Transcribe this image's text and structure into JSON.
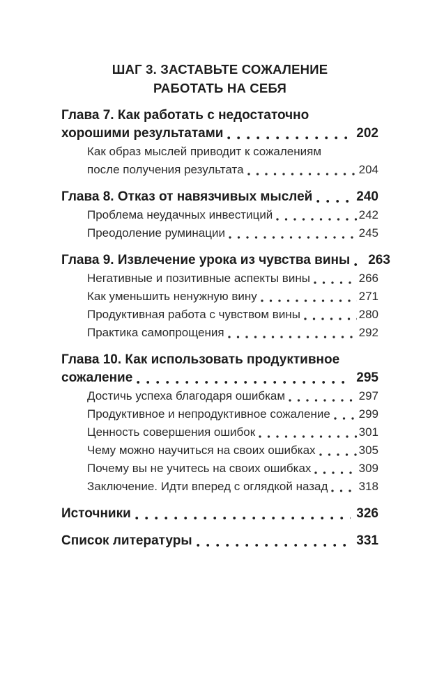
{
  "page": {
    "background_color": "#ffffff",
    "text_color": "#1d1d1d",
    "kind": "book-table-of-contents"
  },
  "section_header": {
    "line1": "ШАГ 3. ЗАСТАВЬТЕ СОЖАЛЕНИЕ",
    "line2": "РАБОТАТЬ НА СЕБЯ"
  },
  "toc": {
    "entries": [
      {
        "type": "chapter",
        "lines": [
          "Глава 7. Как работать с недостаточно",
          "хорошими результатами"
        ],
        "page": "202"
      },
      {
        "type": "sub",
        "lines": [
          "Как образ мыслей приводит к сожалениям",
          "после получения результата"
        ],
        "page": "204"
      },
      {
        "type": "chapter",
        "lines": [
          "Глава 8. Отказ от навязчивых мыслей"
        ],
        "page": "240"
      },
      {
        "type": "sub",
        "lines": [
          "Проблема неудачных инвестиций"
        ],
        "page": "242"
      },
      {
        "type": "sub",
        "lines": [
          "Преодоление руминации"
        ],
        "page": "245"
      },
      {
        "type": "chapter",
        "lines": [
          "Глава 9. Извлечение урока из чувства вины"
        ],
        "page": "263"
      },
      {
        "type": "sub",
        "lines": [
          "Негативные и позитивные аспекты вины"
        ],
        "page": "266"
      },
      {
        "type": "sub",
        "lines": [
          "Как уменьшить ненужную вину"
        ],
        "page": "271"
      },
      {
        "type": "sub",
        "lines": [
          "Продуктивная работа с чувством вины"
        ],
        "page": "280"
      },
      {
        "type": "sub",
        "lines": [
          "Практика самопрощения"
        ],
        "page": "292"
      },
      {
        "type": "chapter",
        "lines": [
          "Глава 10. Как использовать продуктивное",
          "сожаление"
        ],
        "page": "295"
      },
      {
        "type": "sub",
        "lines": [
          "Достичь успеха благодаря ошибкам"
        ],
        "page": "297"
      },
      {
        "type": "sub",
        "lines": [
          "Продуктивное и непродуктивное сожаление"
        ],
        "page": "299"
      },
      {
        "type": "sub",
        "lines": [
          "Ценность совершения ошибок"
        ],
        "page": "301"
      },
      {
        "type": "sub",
        "lines": [
          "Чему можно научиться на своих ошибках"
        ],
        "page": "305"
      },
      {
        "type": "sub",
        "lines": [
          "Почему вы не учитесь на своих ошибках"
        ],
        "page": "309"
      },
      {
        "type": "sub",
        "lines": [
          "Заключение. Идти вперед с оглядкой назад"
        ],
        "page": "318"
      },
      {
        "type": "chapter",
        "lines": [
          "Источники"
        ],
        "page": "326"
      },
      {
        "type": "chapter",
        "lines": [
          "Список литературы"
        ],
        "page": "331"
      }
    ]
  }
}
